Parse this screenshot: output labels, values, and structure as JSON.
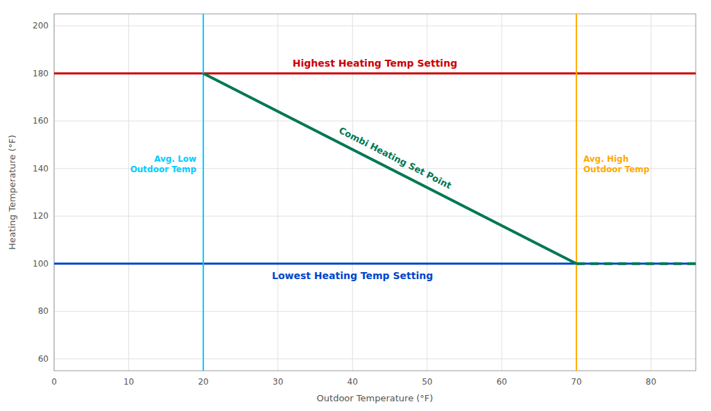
{
  "chart_data": {
    "type": "line",
    "xlabel": "Outdoor Temperature (°F)",
    "ylabel": "Heating Temperature (°F)",
    "xlim": [
      0,
      86
    ],
    "ylim": [
      55,
      205
    ],
    "xticks": [
      0,
      10,
      20,
      30,
      40,
      50,
      60,
      70,
      80
    ],
    "yticks": [
      60,
      80,
      100,
      120,
      140,
      160,
      180,
      200
    ],
    "grid": true,
    "series": [
      {
        "name": "Combi Heating Set Point",
        "color": "#007755",
        "line_style": "solid",
        "x": [
          20,
          70
        ],
        "values": [
          180,
          100
        ]
      },
      {
        "color": "#007755",
        "line_style": "dashed",
        "x": [
          70,
          86
        ],
        "values": [
          100,
          100
        ]
      }
    ],
    "reference_lines": [
      {
        "axis": "y",
        "value": 180,
        "label": "Highest Heating Temp Setting",
        "color": "#cc0000"
      },
      {
        "axis": "y",
        "value": 100,
        "label": "Lowest Heating Temp Setting",
        "color": "#0044cc"
      },
      {
        "axis": "x",
        "value": 20,
        "label": "Avg. Low\nOutdoor Temp",
        "color": "#00ccff"
      },
      {
        "axis": "x",
        "value": 70,
        "label": "Avg. High\nOutdoor Temp",
        "color": "#ffaa00"
      }
    ]
  }
}
